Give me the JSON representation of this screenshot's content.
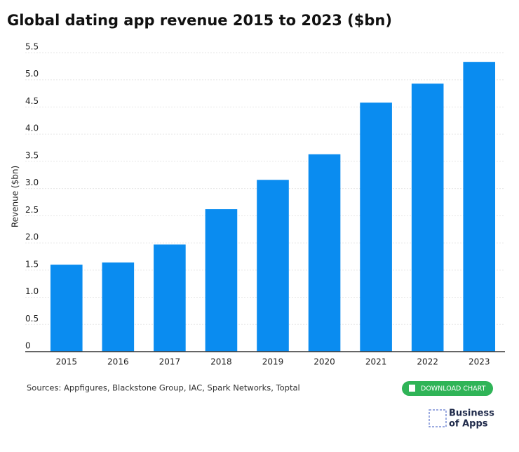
{
  "chart_data": {
    "type": "bar",
    "title": "Global dating app revenue 2015 to 2023 ($bn)",
    "y_label": "Revenue ($bn)",
    "categories": [
      "2015",
      "2016",
      "2017",
      "2018",
      "2019",
      "2020",
      "2021",
      "2022",
      "2023"
    ],
    "values": [
      1.6,
      1.64,
      1.97,
      2.62,
      3.16,
      3.63,
      4.58,
      4.93,
      5.33
    ],
    "color": "#0a8cf0",
    "ylim": [
      0,
      5.5
    ],
    "yticks": [
      0,
      0.5,
      {
        "value": 1,
        "label": "1.0"
      },
      1.5,
      {
        "value": 2,
        "label": "2.0"
      },
      2.5,
      {
        "value": 3,
        "label": "3.0"
      },
      3.5,
      {
        "value": 4,
        "label": "4.0"
      },
      4.5,
      {
        "value": 5,
        "label": "5.0"
      },
      5.5
    ],
    "grid": true
  },
  "footer": {
    "sources": "Sources: Appfigures, Blackstone Group, IAC, Spark Networks, Toptal",
    "button": "DOWNLOAD CHART",
    "brand_line1": "Business",
    "brand_line2": "of Apps"
  }
}
